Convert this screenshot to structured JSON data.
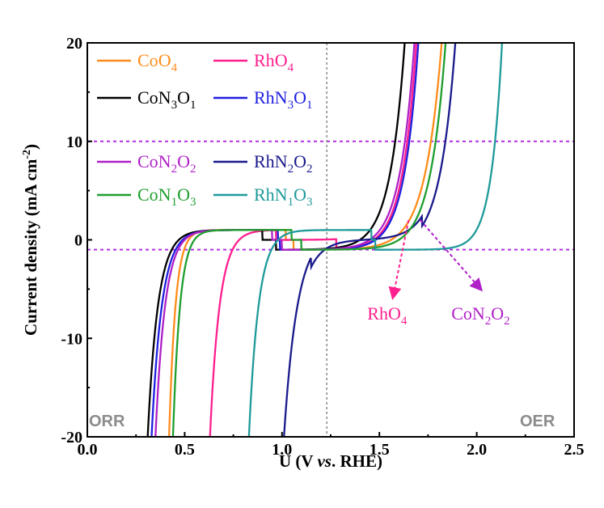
{
  "chart_data": {
    "type": "line",
    "xlabel": "U (V vs. RHE)",
    "xlabel_parts": {
      "before": "U (V ",
      "italic": "vs",
      "after": ". RHE)"
    },
    "ylabel": "Current density (mA cm-2)",
    "ylabel_parts": {
      "main": "Current density (mA cm",
      "sup": "-2",
      "close": ")"
    },
    "xlim": [
      0.0,
      2.5
    ],
    "ylim": [
      -20,
      20
    ],
    "xticks": [
      0.0,
      0.5,
      1.0,
      1.5,
      2.0,
      2.5
    ],
    "yticks": [
      -20,
      -10,
      0,
      10,
      20
    ],
    "xtick_labels": [
      "0.0",
      "0.5",
      "1.0",
      "1.5",
      "2.0",
      "2.5"
    ],
    "ytick_labels": [
      "-20",
      "-10",
      "0",
      "10",
      "20"
    ],
    "reference_lines": {
      "horizontal": [
        10,
        -1
      ],
      "vertical": [
        1.23
      ]
    },
    "region_labels": {
      "left": "ORR",
      "right": "OER"
    },
    "series": [
      {
        "name": "CoO4",
        "label_parts": [
          [
            "Co",
            ""
          ],
          [
            "O",
            ""
          ],
          [
            "4",
            "sub"
          ]
        ],
        "color": "#ff8c1a",
        "orr_onset": 0.52,
        "orr_limit": 0.42,
        "oer_onset": 1.56,
        "oer_limit": 1.82
      },
      {
        "name": "RhO4",
        "label_parts": [
          [
            "Rh",
            ""
          ],
          [
            "O",
            ""
          ],
          [
            "4",
            "sub"
          ]
        ],
        "color": "#ff1f8e",
        "orr_onset": 0.78,
        "orr_limit": 0.63,
        "oer_onset": 1.47,
        "oer_limit": 1.69
      },
      {
        "name": "CoN3O1",
        "label_parts": [
          [
            "CoN",
            ""
          ],
          [
            "3",
            "sub"
          ],
          [
            "O",
            ""
          ],
          [
            "1",
            "sub"
          ]
        ],
        "color": "#000000",
        "orr_onset": 0.47,
        "orr_limit": 0.31,
        "oer_onset": 1.4,
        "oer_limit": 1.63
      },
      {
        "name": "RhN3O1",
        "label_parts": [
          [
            "RhN",
            ""
          ],
          [
            "3",
            "sub"
          ],
          [
            "O",
            ""
          ],
          [
            "1",
            "sub"
          ]
        ],
        "color": "#1f1fe0",
        "orr_onset": 0.49,
        "orr_limit": 0.33,
        "oer_onset": 1.48,
        "oer_limit": 1.7
      },
      {
        "name": "CoN2O2",
        "label_parts": [
          [
            "CoN",
            ""
          ],
          [
            "2",
            "sub"
          ],
          [
            "O",
            ""
          ],
          [
            "2",
            "sub"
          ]
        ],
        "color": "#b020c8",
        "orr_onset": 0.5,
        "orr_limit": 0.35,
        "oer_onset": 1.45,
        "oer_limit": 1.68
      },
      {
        "name": "RhN2O2",
        "label_parts": [
          [
            "RhN",
            ""
          ],
          [
            "2",
            "sub"
          ],
          [
            "O",
            ""
          ],
          [
            "2",
            "sub"
          ]
        ],
        "color": "#1a1a8c",
        "orr_onset": 1.22,
        "orr_limit": 1.01,
        "oer_onset": 1.65,
        "oer_limit": 1.89
      },
      {
        "name": "CoN1O3",
        "label_parts": [
          [
            "CoN",
            ""
          ],
          [
            "1",
            "sub"
          ],
          [
            "O",
            ""
          ],
          [
            "3",
            "sub"
          ]
        ],
        "color": "#1f9e2e",
        "orr_onset": 0.55,
        "orr_limit": 0.44,
        "oer_onset": 1.6,
        "oer_limit": 1.84
      },
      {
        "name": "RhN1O3",
        "label_parts": [
          [
            "RhN",
            ""
          ],
          [
            "1",
            "sub"
          ],
          [
            "O",
            ""
          ],
          [
            "3",
            "sub"
          ]
        ],
        "color": "#1f9a9a",
        "orr_onset": 0.98,
        "orr_limit": 0.83,
        "oer_onset": 1.96,
        "oer_limit": 2.13
      }
    ],
    "annotations": [
      {
        "text": "RhO4",
        "parts": [
          [
            "RhO",
            ""
          ],
          [
            "4",
            "sub"
          ]
        ],
        "color": "#ff1f8e",
        "arrow_from": [
          1.65,
          2.0
        ],
        "arrow_to": [
          1.57,
          -5.8
        ],
        "text_at": [
          1.54,
          -8.1
        ]
      },
      {
        "text": "CoN2O2",
        "parts": [
          [
            "CoN",
            ""
          ],
          [
            "2",
            "sub"
          ],
          [
            "O",
            ""
          ],
          [
            "2",
            "sub"
          ]
        ],
        "color": "#b020c8",
        "arrow_from": [
          1.71,
          2.0
        ],
        "arrow_to": [
          2.02,
          -5.0
        ],
        "text_at": [
          2.02,
          -8.1
        ]
      }
    ]
  }
}
